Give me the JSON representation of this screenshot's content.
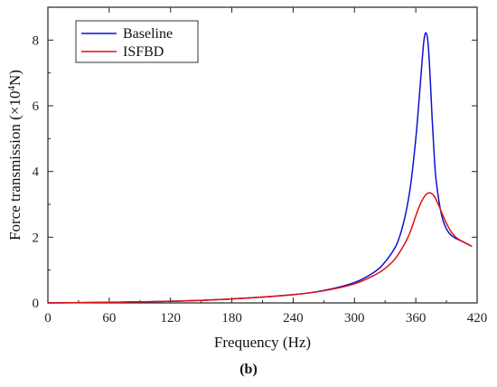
{
  "chart_data": {
    "type": "line",
    "xlabel": "Frequency (Hz)",
    "ylabel_pre": "Force transmission (×10",
    "ylabel_sup": "4",
    "ylabel_post": "N)",
    "xlim": [
      0,
      420
    ],
    "ylim": [
      0,
      9
    ],
    "x_ticks": [
      0,
      60,
      120,
      180,
      240,
      300,
      360,
      420
    ],
    "y_ticks": [
      0,
      2,
      4,
      6,
      8
    ],
    "grid": false,
    "legend_position": "top-left",
    "series": [
      {
        "name": "Baseline",
        "color": "#1010d0",
        "x": [
          0,
          60,
          120,
          180,
          240,
          270,
          300,
          320,
          330,
          340,
          345,
          350,
          355,
          360,
          363,
          366,
          368,
          370,
          372,
          374,
          376,
          378,
          380,
          385,
          390,
          395,
          400,
          405,
          410,
          415
        ],
        "y": [
          0,
          0.02,
          0.05,
          0.12,
          0.25,
          0.38,
          0.62,
          0.95,
          1.25,
          1.7,
          2.1,
          2.7,
          3.6,
          5.0,
          6.1,
          7.3,
          8.0,
          8.22,
          7.9,
          6.9,
          5.6,
          4.5,
          3.7,
          2.7,
          2.25,
          2.05,
          1.95,
          1.88,
          1.8,
          1.72
        ]
      },
      {
        "name": "ISFBD",
        "color": "#e01010",
        "x": [
          0,
          60,
          120,
          180,
          240,
          270,
          300,
          320,
          330,
          340,
          350,
          355,
          360,
          365,
          370,
          374,
          378,
          382,
          386,
          390,
          395,
          400,
          405,
          410,
          415
        ],
        "y": [
          0,
          0.02,
          0.05,
          0.12,
          0.25,
          0.37,
          0.58,
          0.85,
          1.05,
          1.35,
          1.85,
          2.2,
          2.65,
          3.05,
          3.3,
          3.35,
          3.25,
          3.0,
          2.7,
          2.42,
          2.15,
          1.98,
          1.88,
          1.8,
          1.72
        ]
      }
    ]
  },
  "caption": "(b)"
}
